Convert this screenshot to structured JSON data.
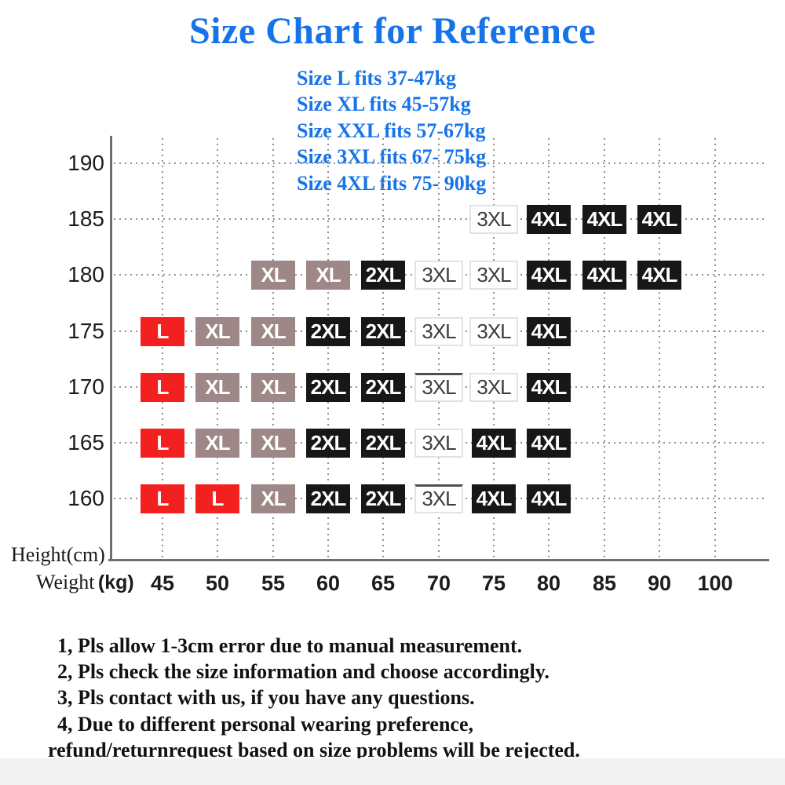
{
  "title": "Size Chart for Reference",
  "subtitle_lines": [
    "Size L fits 37-47kg",
    "Size XL fits 45-57kg",
    "Size XXL fits 57-67kg",
    "Size 3XL fits 67- 75kg",
    "Size 4XL fits 75- 90kg"
  ],
  "notes": [
    {
      "text": "1, Pls allow 1-3cm error due to manual measurement.",
      "continuation": false
    },
    {
      "text": "2, Pls check the size information and choose accordingly.",
      "continuation": false
    },
    {
      "text": "3, Pls contact with us, if you have any questions.",
      "continuation": false
    },
    {
      "text": "4, Due to different personal wearing preference,",
      "continuation": false
    },
    {
      "text": "refund/returnrequest based on size problems will be rejected.",
      "continuation": true
    }
  ],
  "colors": {
    "accent_blue": "#1673e8",
    "size_l_red": "#f32020",
    "size_xl_gray": "#9d8787",
    "size_dark": "#171717",
    "grid_dot": "#8f8f8f",
    "axis_line": "#6f6f6f",
    "outline_cell_border": "#e2e2e2",
    "outline_cell_text": "#3d3d3d",
    "tick_text": "#1c1c1c",
    "note_text": "#111111"
  },
  "chart_data": {
    "type": "table",
    "title": "Size Chart for Reference",
    "grid": "dotted",
    "x_axis": {
      "label": "Weight (kg)",
      "label_serif": "Weight",
      "label_bold": "(kg)",
      "ticks": [
        "45",
        "50",
        "55",
        "60",
        "65",
        "70",
        "75",
        "80",
        "85",
        "90",
        "100"
      ]
    },
    "y_axis": {
      "label": "Height(cm)",
      "ticks": [
        "190",
        "185",
        "180",
        "175",
        "170",
        "165",
        "160"
      ]
    },
    "size_fit_ranges": [
      {
        "size": "L",
        "fits": "37-47kg"
      },
      {
        "size": "XL",
        "fits": "45-57kg"
      },
      {
        "size": "XXL",
        "fits": "57-67kg"
      },
      {
        "size": "3XL",
        "fits": "67- 75kg"
      },
      {
        "size": "4XL",
        "fits": "75- 90kg"
      }
    ],
    "cells": [
      {
        "height": "185",
        "weight": "75",
        "label": "3XL",
        "variant": "outline"
      },
      {
        "height": "185",
        "weight": "80",
        "label": "4XL",
        "variant": "dark"
      },
      {
        "height": "185",
        "weight": "85",
        "label": "4XL",
        "variant": "dark"
      },
      {
        "height": "185",
        "weight": "90",
        "label": "4XL",
        "variant": "dark"
      },
      {
        "height": "180",
        "weight": "55",
        "label": "XL",
        "variant": "gray"
      },
      {
        "height": "180",
        "weight": "60",
        "label": "XL",
        "variant": "gray"
      },
      {
        "height": "180",
        "weight": "65",
        "label": "2XL",
        "variant": "dark"
      },
      {
        "height": "180",
        "weight": "70",
        "label": "3XL",
        "variant": "outline"
      },
      {
        "height": "180",
        "weight": "75",
        "label": "3XL",
        "variant": "outline"
      },
      {
        "height": "180",
        "weight": "80",
        "label": "4XL",
        "variant": "dark"
      },
      {
        "height": "180",
        "weight": "85",
        "label": "4XL",
        "variant": "dark"
      },
      {
        "height": "180",
        "weight": "90",
        "label": "4XL",
        "variant": "dark"
      },
      {
        "height": "175",
        "weight": "45",
        "label": "L",
        "variant": "red"
      },
      {
        "height": "175",
        "weight": "50",
        "label": "XL",
        "variant": "gray"
      },
      {
        "height": "175",
        "weight": "55",
        "label": "XL",
        "variant": "gray"
      },
      {
        "height": "175",
        "weight": "60",
        "label": "2XL",
        "variant": "dark"
      },
      {
        "height": "175",
        "weight": "65",
        "label": "2XL",
        "variant": "dark"
      },
      {
        "height": "175",
        "weight": "70",
        "label": "3XL",
        "variant": "outline"
      },
      {
        "height": "175",
        "weight": "75",
        "label": "3XL",
        "variant": "outline"
      },
      {
        "height": "175",
        "weight": "80",
        "label": "4XL",
        "variant": "dark"
      },
      {
        "height": "170",
        "weight": "45",
        "label": "L",
        "variant": "red"
      },
      {
        "height": "170",
        "weight": "50",
        "label": "XL",
        "variant": "gray"
      },
      {
        "height": "170",
        "weight": "55",
        "label": "XL",
        "variant": "gray"
      },
      {
        "height": "170",
        "weight": "60",
        "label": "2XL",
        "variant": "dark"
      },
      {
        "height": "170",
        "weight": "65",
        "label": "2XL",
        "variant": "dark"
      },
      {
        "height": "170",
        "weight": "70",
        "label": "3XL",
        "variant": "outline-top"
      },
      {
        "height": "170",
        "weight": "75",
        "label": "3XL",
        "variant": "outline"
      },
      {
        "height": "170",
        "weight": "80",
        "label": "4XL",
        "variant": "dark"
      },
      {
        "height": "165",
        "weight": "45",
        "label": "L",
        "variant": "red"
      },
      {
        "height": "165",
        "weight": "50",
        "label": "XL",
        "variant": "gray"
      },
      {
        "height": "165",
        "weight": "55",
        "label": "XL",
        "variant": "gray"
      },
      {
        "height": "165",
        "weight": "60",
        "label": "2XL",
        "variant": "dark"
      },
      {
        "height": "165",
        "weight": "65",
        "label": "2XL",
        "variant": "dark"
      },
      {
        "height": "165",
        "weight": "70",
        "label": "3XL",
        "variant": "outline"
      },
      {
        "height": "165",
        "weight": "75",
        "label": "4XL",
        "variant": "dark"
      },
      {
        "height": "165",
        "weight": "80",
        "label": "4XL",
        "variant": "dark"
      },
      {
        "height": "160",
        "weight": "45",
        "label": "L",
        "variant": "red"
      },
      {
        "height": "160",
        "weight": "50",
        "label": "L",
        "variant": "red"
      },
      {
        "height": "160",
        "weight": "55",
        "label": "XL",
        "variant": "gray"
      },
      {
        "height": "160",
        "weight": "60",
        "label": "2XL",
        "variant": "dark"
      },
      {
        "height": "160",
        "weight": "65",
        "label": "2XL",
        "variant": "dark"
      },
      {
        "height": "160",
        "weight": "70",
        "label": "3XL",
        "variant": "outline-top"
      },
      {
        "height": "160",
        "weight": "75",
        "label": "4XL",
        "variant": "dark"
      },
      {
        "height": "160",
        "weight": "80",
        "label": "4XL",
        "variant": "dark"
      }
    ]
  }
}
